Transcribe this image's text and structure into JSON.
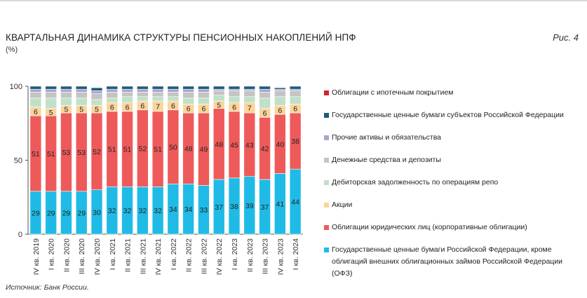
{
  "header": {
    "title": "КВАРТАЛЬНАЯ ДИНАМИКА СТРУКТУРЫ ПЕНСИОННЫХ НАКОПЛЕНИЙ НПФ",
    "unit": "(%)",
    "figure_label": "Рис. 4"
  },
  "footer": {
    "source": "Источник: Банк России."
  },
  "chart_data": {
    "type": "bar",
    "stacked": true,
    "categories": [
      "IV кв. 2019",
      "I кв. 2020",
      "II кв. 2020",
      "III кв. 2020",
      "IV кв. 2020",
      "I кв. 2021",
      "II кв. 2021",
      "III кв. 2021",
      "IV кв. 2021",
      "I кв. 2022",
      "II кв. 2022",
      "III кв. 2022",
      "IV кв. 2022",
      "I кв. 2023",
      "II кв. 2023",
      "III кв. 2023",
      "IV кв. 2023",
      "I кв. 2024"
    ],
    "ylim": [
      0,
      100
    ],
    "yticks": [
      0,
      50,
      100
    ],
    "series": [
      {
        "name": "Государственные ценные бумаги Российской Федерации, кроме облигаций внешних облигационных займов Российской Федерации (ОФЗ)",
        "color": "#1fbbe6",
        "values": [
          29,
          29,
          29,
          29,
          30,
          32,
          32,
          32,
          32,
          34,
          34,
          33,
          37,
          38,
          39,
          37,
          41,
          44
        ],
        "labeled": true
      },
      {
        "name": "Облигации юридических лиц (корпоративные облигации)",
        "color": "#ee5a5a",
        "values": [
          51,
          51,
          53,
          53,
          52,
          51,
          51,
          52,
          51,
          50,
          48,
          49,
          48,
          45,
          43,
          42,
          40,
          38
        ],
        "labeled": true
      },
      {
        "name": "Акции",
        "color": "#fcd49a",
        "values": [
          6,
          5,
          5,
          5,
          5,
          6,
          6,
          6,
          7,
          6,
          6,
          6,
          5,
          6,
          7,
          6,
          6,
          6
        ],
        "labeled": true
      },
      {
        "name": "Дебиторская задолженность по операциям репо",
        "color": "#bfe1c8",
        "values": [
          6,
          7,
          5,
          5,
          4,
          3,
          4,
          3,
          3,
          3,
          4,
          4,
          4,
          4,
          4,
          7,
          6,
          5
        ],
        "labeled": false
      },
      {
        "name": "Денежные средства и депозиты",
        "color": "#c4c4c4",
        "values": [
          4,
          4,
          4,
          4,
          4,
          4,
          3,
          3,
          3,
          3,
          4,
          4,
          3,
          4,
          4,
          4,
          4,
          4
        ],
        "labeled": false
      },
      {
        "name": "Прочие активы и обязательства",
        "color": "#a9a6cf",
        "values": [
          2,
          2,
          2,
          2,
          2,
          2,
          2,
          2,
          2,
          2,
          2,
          2,
          1,
          1,
          1,
          2,
          1,
          1
        ],
        "labeled": false
      },
      {
        "name": "Государственные ценные бумаги субъектов Российской Федерации",
        "color": "#1e5b7a",
        "values": [
          2,
          2,
          2,
          2,
          2,
          2,
          2,
          2,
          2,
          2,
          2,
          2,
          2,
          2,
          2,
          2,
          1,
          2
        ],
        "labeled": false
      },
      {
        "name": "Облигации с ипотечным покрытием",
        "color": "#d3232a",
        "values": [
          0,
          0,
          0,
          0,
          0,
          0,
          0,
          0,
          0,
          0,
          0,
          0,
          0,
          0,
          0,
          0,
          0,
          0
        ],
        "labeled": false
      }
    ],
    "legend_position": "right",
    "grid": false
  }
}
